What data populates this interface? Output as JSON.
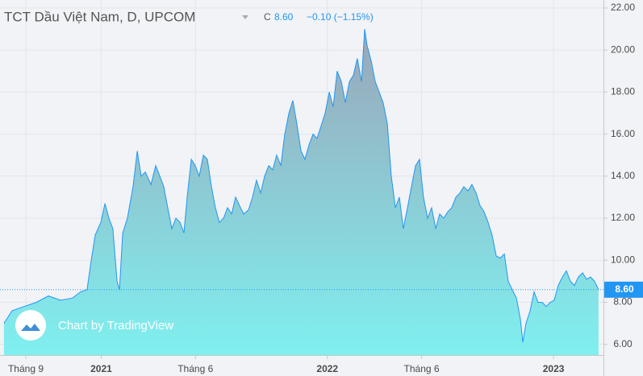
{
  "header": {
    "close_prefix": "C",
    "close": "8.60",
    "change": "−0.10 (−1.15%)"
  },
  "watermark": "Chart by TradingView",
  "chart_data": {
    "type": "area",
    "title": "TCT Dầu Việt Nam, D, UPCOM",
    "color": "#2196f3",
    "x": [
      -1.16,
      -0.73,
      -0.09,
      0.56,
      1.2,
      1.84,
      2.48,
      2.91,
      3.25,
      3.47,
      3.68,
      3.98,
      4.2,
      4.41,
      4.62,
      4.84,
      4.97,
      5.14,
      5.39,
      5.69,
      5.91,
      6.12,
      6.34,
      6.64,
      6.89,
      7.11,
      7.32,
      7.53,
      7.75,
      7.96,
      8.18,
      8.39,
      8.56,
      8.78,
      8.99,
      9.2,
      9.42,
      9.63,
      9.85,
      10.06,
      10.27,
      10.49,
      10.7,
      10.92,
      11.13,
      11.34,
      11.56,
      11.82,
      12.03,
      12.24,
      12.46,
      12.67,
      12.89,
      13.1,
      13.31,
      13.53,
      13.74,
      13.96,
      14.17,
      14.38,
      14.6,
      14.81,
      15.03,
      15.24,
      15.45,
      15.67,
      15.88,
      16.1,
      16.31,
      16.52,
      16.74,
      16.95,
      17.17,
      17.38,
      17.59,
      17.81,
      17.98,
      18.11,
      18.32,
      18.54,
      18.75,
      18.96,
      19.18,
      19.39,
      19.61,
      19.82,
      20.03,
      20.25,
      20.46,
      20.68,
      20.89,
      21.1,
      21.32,
      21.53,
      21.75,
      21.96,
      22.17,
      22.39,
      22.6,
      22.82,
      23.03,
      23.24,
      23.46,
      23.67,
      23.89,
      24.1,
      24.32,
      24.53,
      24.74,
      24.96,
      25.17,
      25.39,
      25.6,
      25.81,
      26.03,
      26.24,
      26.37,
      26.54,
      26.76,
      26.97,
      27.18,
      27.4,
      27.61,
      27.83,
      28.04,
      28.25,
      28.47,
      28.68,
      28.9,
      29.11,
      29.32,
      29.54,
      29.75,
      29.97,
      30.18,
      30.39
    ],
    "values": [
      7.0,
      7.6,
      7.8,
      8.0,
      8.3,
      8.1,
      8.2,
      8.5,
      8.6,
      10.0,
      11.2,
      11.8,
      12.7,
      12.0,
      11.5,
      9.0,
      8.6,
      11.3,
      12.0,
      13.5,
      15.2,
      14.0,
      14.2,
      13.6,
      14.5,
      14.0,
      13.5,
      12.5,
      11.5,
      12.0,
      11.8,
      11.3,
      13.0,
      14.8,
      14.5,
      14.0,
      15.0,
      14.8,
      13.5,
      12.5,
      11.8,
      12.0,
      12.5,
      12.2,
      13.0,
      12.6,
      12.2,
      12.4,
      13.0,
      13.8,
      13.2,
      14.0,
      14.5,
      14.3,
      15.0,
      14.5,
      16.0,
      17.0,
      17.6,
      16.5,
      15.2,
      14.8,
      15.5,
      16.0,
      15.8,
      16.4,
      17.0,
      18.0,
      17.3,
      19.0,
      18.5,
      17.5,
      18.5,
      18.8,
      19.6,
      18.5,
      21.0,
      20.2,
      19.5,
      18.5,
      18.0,
      17.5,
      16.5,
      14.0,
      12.5,
      13.0,
      11.5,
      12.5,
      13.5,
      14.5,
      14.8,
      13.0,
      12.0,
      12.5,
      11.5,
      12.2,
      12.0,
      12.3,
      12.5,
      13.0,
      13.2,
      13.5,
      13.3,
      13.6,
      13.2,
      12.6,
      12.3,
      11.8,
      11.2,
      10.2,
      10.1,
      10.3,
      9.0,
      8.6,
      8.2,
      7.2,
      6.1,
      7.0,
      7.6,
      8.5,
      8.0,
      8.0,
      7.8,
      8.0,
      8.1,
      8.8,
      9.2,
      9.5,
      9.0,
      8.8,
      9.2,
      9.4,
      9.1,
      9.2,
      9.0,
      8.6
    ],
    "last_price": {
      "value": 8.6,
      "label": "8.60"
    },
    "xlim": [
      -1.37,
      30.65
    ],
    "xticks": [
      {
        "value": 0,
        "label": "Tháng 9"
      },
      {
        "value": 4,
        "label": "2021"
      },
      {
        "value": 9,
        "label": "Tháng 6"
      },
      {
        "value": 16,
        "label": "2022"
      },
      {
        "value": 21,
        "label": "Tháng 6"
      },
      {
        "value": 28,
        "label": "2023"
      }
    ],
    "ylim": [
      5.49,
      22.38
    ],
    "yticks": [
      {
        "value": 6,
        "label": "6.00"
      },
      {
        "value": 8,
        "label": "8.00"
      },
      {
        "value": 10,
        "label": "10.00"
      },
      {
        "value": 12,
        "label": "12.00"
      },
      {
        "value": 14,
        "label": "14.00"
      },
      {
        "value": 16,
        "label": "16.00"
      },
      {
        "value": 18,
        "label": "18.00"
      },
      {
        "value": 20,
        "label": "20.00"
      },
      {
        "value": 22,
        "label": "22.00"
      }
    ],
    "grid": true
  }
}
